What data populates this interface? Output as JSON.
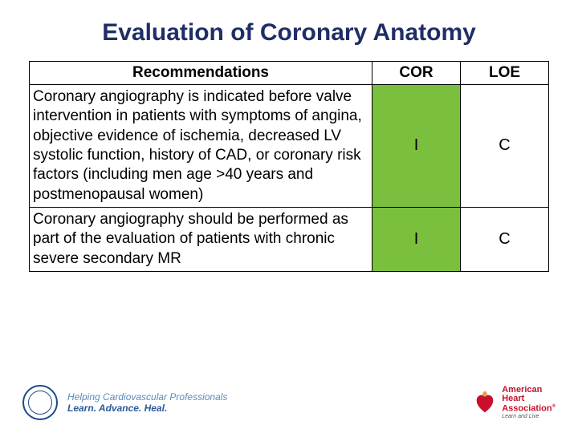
{
  "title": {
    "text": "Evaluation of Coronary Anatomy",
    "color": "#1f2e66",
    "fontsize": 30
  },
  "table": {
    "header": {
      "rec": "Recommendations",
      "cor": "COR",
      "loe": "LOE"
    },
    "col_widths_pct": [
      66,
      17,
      17
    ],
    "rows": [
      {
        "rec": "Coronary angiography is indicated before valve intervention in patients with symptoms of angina, objective evidence of ischemia, decreased LV systolic function, history of CAD, or coronary risk factors (including men age >40 years and postmenopausal women)",
        "cor": "I",
        "loe": "C",
        "cor_bg": "#7bbf3f",
        "loe_bg": "#ffffff"
      },
      {
        "rec": "Coronary angiography should be performed as part of the evaluation of patients with chronic severe secondary MR",
        "cor": "I",
        "loe": "C",
        "cor_bg": "#7bbf3f",
        "loe_bg": "#ffffff"
      }
    ],
    "border_color": "#000000",
    "text_color": "#000000",
    "fontsize": 19
  },
  "footer": {
    "acc_tagline1": "Helping Cardiovascular Professionals",
    "acc_tagline2": "Learn. Advance. Heal.",
    "aha_name1": "American",
    "aha_name2": "Heart",
    "aha_name3": "Association",
    "aha_sub": "Learn and Live",
    "aha_color": "#c8102e",
    "acc_color": "#1a4a8a"
  }
}
